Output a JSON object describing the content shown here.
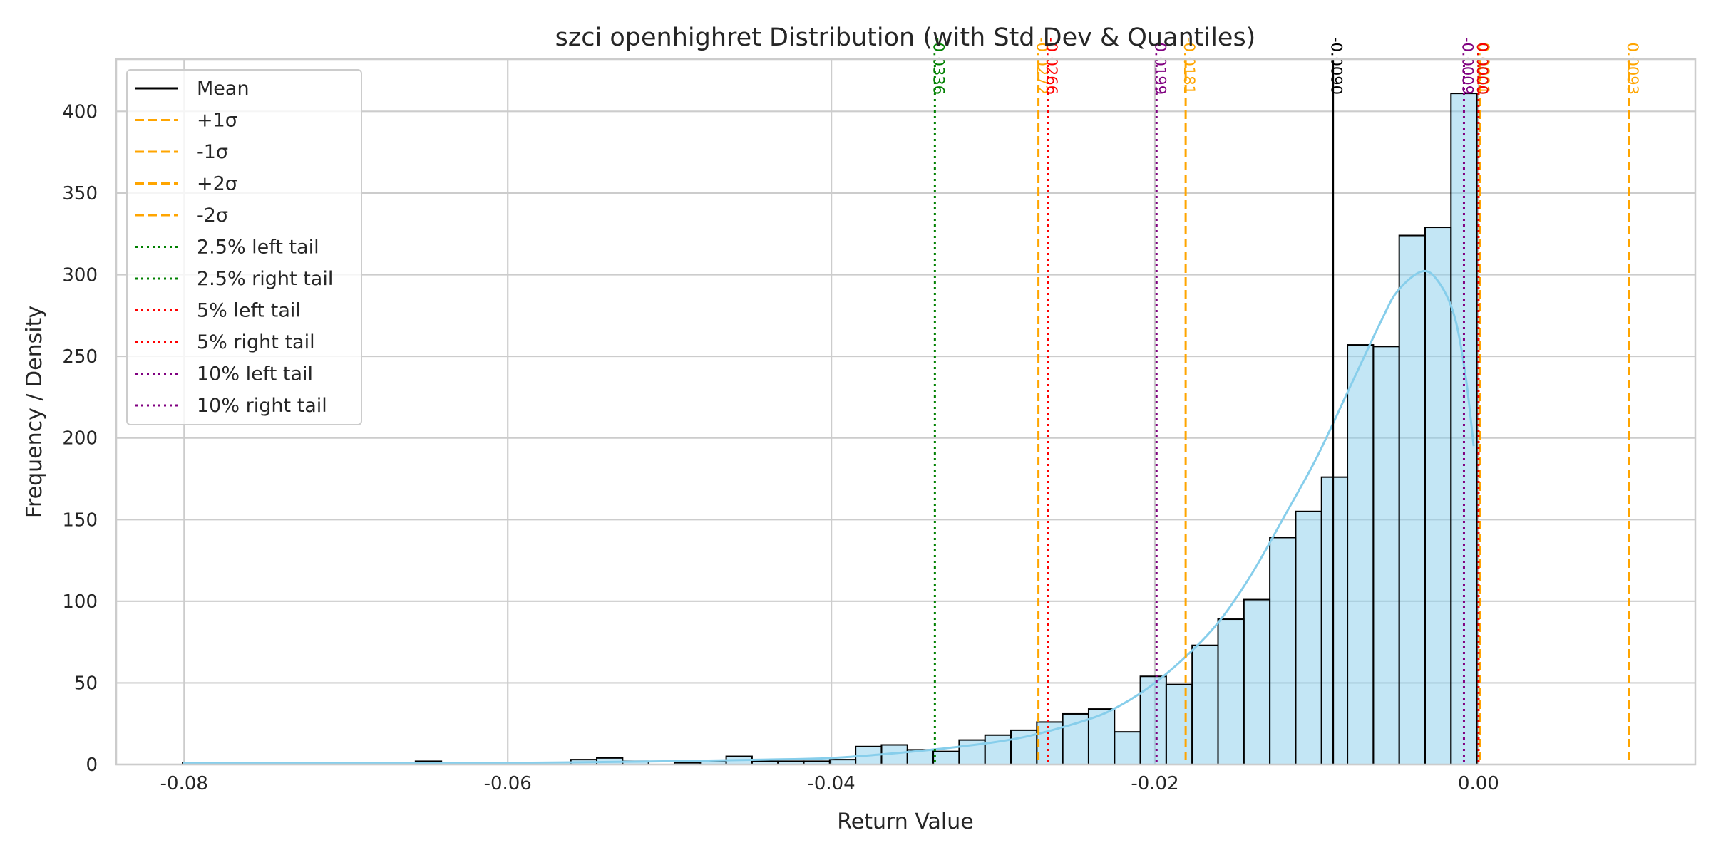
{
  "chart_data": {
    "type": "histogram",
    "title": "szci openhighret Distribution (with Std Dev & Quantiles)",
    "xlabel": "Return Value",
    "ylabel": "Frequency / Density",
    "xlim": [
      -0.0842,
      0.0134
    ],
    "ylim": [
      0,
      432
    ],
    "xticks": [
      -0.08,
      -0.06,
      -0.04,
      -0.02,
      0.0
    ],
    "xtick_labels": [
      "-0.08",
      "-0.06",
      "-0.04",
      "-0.02",
      "0.00"
    ],
    "yticks": [
      0,
      50,
      100,
      150,
      200,
      250,
      300,
      350,
      400
    ],
    "ytick_labels": [
      "0",
      "50",
      "100",
      "150",
      "200",
      "250",
      "300",
      "350",
      "400"
    ],
    "grid": true,
    "bar_color": "#87CEEB",
    "bin_edges": [
      -0.0801,
      -0.0785,
      -0.0769,
      -0.0753,
      -0.0737,
      -0.0721,
      -0.0705,
      -0.0689,
      -0.0673,
      -0.0657,
      -0.0641,
      -0.0625,
      -0.0609,
      -0.0593,
      -0.0577,
      -0.0561,
      -0.0545,
      -0.0529,
      -0.0513,
      -0.0497,
      -0.0481,
      -0.0465,
      -0.0449,
      -0.0433,
      -0.0417,
      -0.0401,
      -0.0385,
      -0.0369,
      -0.0353,
      -0.0337,
      -0.0321,
      -0.0305,
      -0.0289,
      -0.0273,
      -0.0257,
      -0.0241,
      -0.0225,
      -0.0209,
      -0.0193,
      -0.0177,
      -0.0161,
      -0.0145,
      -0.0129,
      -0.0113,
      -0.0097,
      -0.0081,
      -0.0065,
      -0.0049,
      -0.0033,
      -0.0017,
      -0.0001
    ],
    "counts": [
      1,
      0,
      1,
      0,
      0,
      0,
      0,
      1,
      0,
      2,
      0,
      0,
      0,
      0,
      0,
      3,
      4,
      2,
      0,
      1,
      2,
      5,
      2,
      2,
      2,
      3,
      11,
      12,
      9,
      8,
      15,
      18,
      21,
      26,
      31,
      34,
      20,
      54,
      49,
      73,
      89,
      101,
      139,
      155,
      176,
      257,
      256,
      324,
      329,
      411
    ],
    "kde_color": "#87CEEB",
    "kde_x": [
      -0.0801,
      -0.07,
      -0.06,
      -0.05,
      -0.044,
      -0.04,
      -0.036,
      -0.032,
      -0.028,
      -0.024,
      -0.022,
      -0.02,
      -0.018,
      -0.016,
      -0.014,
      -0.012,
      -0.01,
      -0.008,
      -0.006,
      -0.005,
      -0.0035,
      -0.0025,
      -0.0015,
      -0.0008,
      -0.0003
    ],
    "kde_y": [
      1,
      1,
      1,
      2,
      3,
      4,
      7,
      11,
      17,
      28,
      37,
      50,
      67,
      88,
      117,
      152,
      188,
      230,
      272,
      290,
      302,
      296,
      275,
      238,
      195
    ],
    "lines": [
      {
        "name": "Mean",
        "value": -0.009,
        "label": "-0.0090",
        "color": "#000000",
        "style": "solid"
      },
      {
        "name": "+1σ",
        "value": -0.0181,
        "label": "-0.0181",
        "color": "#FFA500",
        "style": "dashed"
      },
      {
        "name": "-1σ",
        "value": 0.0001,
        "label": "0.0001",
        "color": "#FFA500",
        "style": "dashed"
      },
      {
        "name": "+2σ",
        "value": -0.0272,
        "label": "-0.0272",
        "color": "#FFA500",
        "style": "dashed"
      },
      {
        "name": "-2σ",
        "value": 0.0093,
        "label": "0.0093",
        "color": "#FFA500",
        "style": "dashed"
      },
      {
        "name": "2.5% left tail",
        "value": -0.0336,
        "label": "-0.0336",
        "color": "#008000",
        "style": "dotted"
      },
      {
        "name": "2.5% right tail",
        "value": 0.0,
        "label": "0.0000",
        "color": "#008000",
        "style": "dotted"
      },
      {
        "name": "5% left tail",
        "value": -0.0266,
        "label": "-0.0266",
        "color": "#FF0000",
        "style": "dotted"
      },
      {
        "name": "5% right tail",
        "value": 0.0,
        "label": "0.0000",
        "color": "#FF0000",
        "style": "dotted"
      },
      {
        "name": "10% left tail",
        "value": -0.0199,
        "label": "-0.0199",
        "color": "#800080",
        "style": "dotted"
      },
      {
        "name": "10% right tail",
        "value": -0.0009,
        "label": "-0.0009",
        "color": "#800080",
        "style": "dotted"
      }
    ],
    "legend": {
      "placement": "top-left",
      "entries": [
        {
          "label": "Mean",
          "color": "#000000",
          "style": "solid"
        },
        {
          "label": "+1σ",
          "color": "#FFA500",
          "style": "dashed"
        },
        {
          "label": "-1σ",
          "color": "#FFA500",
          "style": "dashed"
        },
        {
          "label": "+2σ",
          "color": "#FFA500",
          "style": "dashed"
        },
        {
          "label": "-2σ",
          "color": "#FFA500",
          "style": "dashed"
        },
        {
          "label": "2.5% left tail",
          "color": "#008000",
          "style": "dotted"
        },
        {
          "label": "2.5% right tail",
          "color": "#008000",
          "style": "dotted"
        },
        {
          "label": "5% left tail",
          "color": "#FF0000",
          "style": "dotted"
        },
        {
          "label": "5% right tail",
          "color": "#FF0000",
          "style": "dotted"
        },
        {
          "label": "10% left tail",
          "color": "#800080",
          "style": "dotted"
        },
        {
          "label": "10% right tail",
          "color": "#800080",
          "style": "dotted"
        }
      ]
    }
  }
}
